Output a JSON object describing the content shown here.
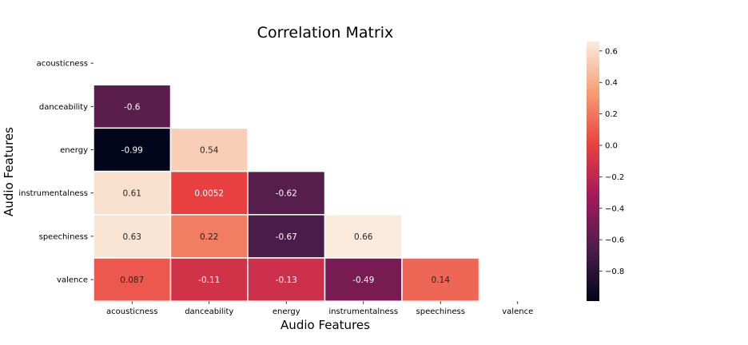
{
  "chart_data": {
    "type": "heatmap",
    "title": "Correlation Matrix",
    "xlabel": "Audio Features",
    "ylabel": "Audio Features",
    "rows": [
      "acousticness",
      "danceability",
      "energy",
      "instrumentalness",
      "speechiness",
      "valence"
    ],
    "columns": [
      "acousticness",
      "danceability",
      "energy",
      "instrumentalness",
      "speechiness",
      "valence"
    ],
    "mask": "upper-triangle-and-diagonal",
    "cells": [
      {
        "row": "danceability",
        "col": "acousticness",
        "value": -0.6,
        "label": "-0.6"
      },
      {
        "row": "energy",
        "col": "acousticness",
        "value": -0.99,
        "label": "-0.99"
      },
      {
        "row": "energy",
        "col": "danceability",
        "value": 0.54,
        "label": "0.54"
      },
      {
        "row": "instrumentalness",
        "col": "acousticness",
        "value": 0.61,
        "label": "0.61"
      },
      {
        "row": "instrumentalness",
        "col": "danceability",
        "value": 0.0052,
        "label": "0.0052"
      },
      {
        "row": "instrumentalness",
        "col": "energy",
        "value": -0.62,
        "label": "-0.62"
      },
      {
        "row": "speechiness",
        "col": "acousticness",
        "value": 0.63,
        "label": "0.63"
      },
      {
        "row": "speechiness",
        "col": "danceability",
        "value": 0.22,
        "label": "0.22"
      },
      {
        "row": "speechiness",
        "col": "energy",
        "value": -0.67,
        "label": "-0.67"
      },
      {
        "row": "speechiness",
        "col": "instrumentalness",
        "value": 0.66,
        "label": "0.66"
      },
      {
        "row": "valence",
        "col": "acousticness",
        "value": 0.087,
        "label": "0.087"
      },
      {
        "row": "valence",
        "col": "danceability",
        "value": -0.11,
        "label": "-0.11"
      },
      {
        "row": "valence",
        "col": "energy",
        "value": -0.13,
        "label": "-0.13"
      },
      {
        "row": "valence",
        "col": "instrumentalness",
        "value": -0.49,
        "label": "-0.49"
      },
      {
        "row": "valence",
        "col": "speechiness",
        "value": 0.14,
        "label": "0.14"
      }
    ],
    "colorbar": {
      "range": [
        -0.99,
        0.66
      ],
      "ticks": [
        0.6,
        0.4,
        0.2,
        0.0,
        -0.2,
        -0.4,
        -0.6,
        -0.8
      ],
      "tick_labels": [
        "0.6",
        "0.4",
        "0.2",
        "0.0",
        "−0.2",
        "−0.4",
        "−0.6",
        "−0.8"
      ],
      "colormap": "rocket",
      "colormap_stops": [
        "#03051a",
        "#4c1d4b",
        "#a11a5b",
        "#e83f3f",
        "#f69c73",
        "#faebdd"
      ]
    },
    "grid": false,
    "cell_border_color": "#ffffff"
  }
}
